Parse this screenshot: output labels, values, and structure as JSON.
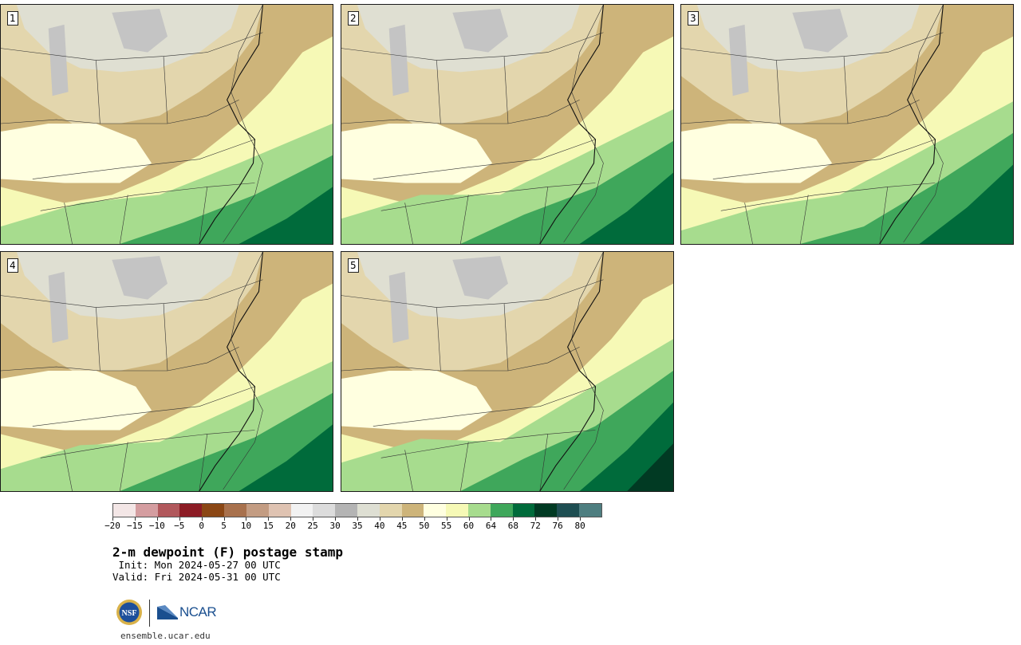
{
  "panels": [
    {
      "label": "1"
    },
    {
      "label": "2"
    },
    {
      "label": "3"
    },
    {
      "label": "4"
    },
    {
      "label": "5"
    }
  ],
  "colorbar": {
    "ticks": [
      "−20",
      "−15",
      "−10",
      "−5",
      "0",
      "5",
      "10",
      "15",
      "20",
      "25",
      "30",
      "35",
      "40",
      "45",
      "50",
      "55",
      "60",
      "64",
      "68",
      "72",
      "76",
      "80"
    ],
    "colors": [
      "#f3e6e6",
      "#d49da0",
      "#b1585c",
      "#8c1c25",
      "#8b4715",
      "#a8714d",
      "#c39c82",
      "#dfc3b2",
      "#f2f2f2",
      "#dcdcdc",
      "#b4b4b4",
      "#dedfd3",
      "#e3d6ad",
      "#cdb47a",
      "#ffffe0",
      "#f6f9b6",
      "#a7dc8e",
      "#3fa75b",
      "#006b3b",
      "#013a23",
      "#1e4e52",
      "#4e7e80"
    ]
  },
  "text": {
    "title": "2-m dewpoint (F) postage stamp",
    "init": " Init: Mon 2024-05-27 00 UTC",
    "valid": "Valid: Fri 2024-05-31 00 UTC",
    "logo_ncar": "NCAR",
    "logo_nsf": "NSF",
    "url": "ensemble.ucar.edu"
  }
}
